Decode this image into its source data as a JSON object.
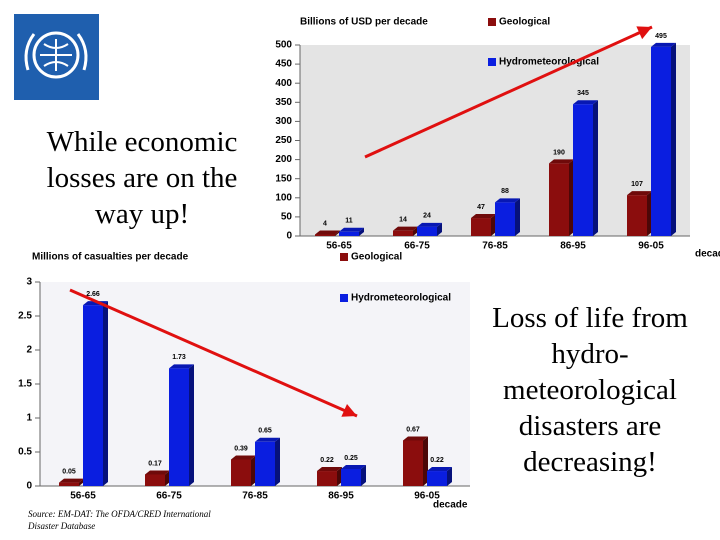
{
  "texts": {
    "left": "While economic losses are on the way up!",
    "right": "Loss of life from hydro-meteorological disasters are decreasing!",
    "source": "Source: EM-DAT: The OFDA/CRED International Disaster Database"
  },
  "chart_data": [
    {
      "type": "bar",
      "title": "Billions of USD per decade",
      "x_label": "decade",
      "categories": [
        "56-65",
        "66-75",
        "76-85",
        "86-95",
        "96-05"
      ],
      "series": [
        {
          "name": "Geological",
          "color": "#8b0d0d",
          "values": [
            4,
            14,
            47,
            190,
            107
          ]
        },
        {
          "name": "Hydrometeorological",
          "color": "#0a1ee0",
          "values": [
            11,
            24,
            88,
            345,
            495
          ]
        }
      ],
      "ylim": [
        0,
        500
      ],
      "yticks": [
        0,
        50,
        100,
        150,
        200,
        250,
        300,
        350,
        400,
        450,
        500
      ]
    },
    {
      "type": "bar",
      "title": "Millions of casualties per decade",
      "x_label": "decade",
      "categories": [
        "56-65",
        "66-75",
        "76-85",
        "86-95",
        "96-05"
      ],
      "series": [
        {
          "color": "#8b0d0d",
          "values": [
            0.05,
            0.17,
            0.39,
            0.22,
            0.67
          ]
        },
        {
          "name": "Hydrometeorological",
          "color": "#0a1ee0",
          "values": [
            2.66,
            1.73,
            0.65,
            0.25,
            0.22
          ]
        }
      ],
      "ylim": [
        0,
        3
      ],
      "yticks": [
        0,
        0.5,
        1,
        1.5,
        2,
        2.5,
        3
      ]
    }
  ]
}
